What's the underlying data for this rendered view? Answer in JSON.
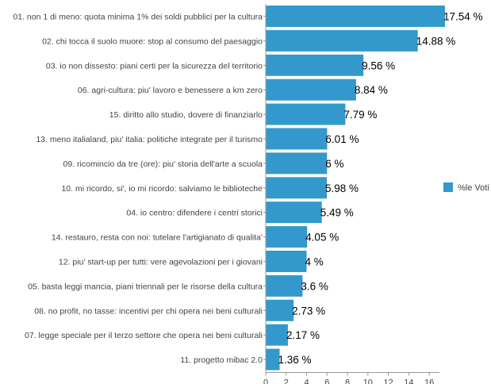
{
  "chart_data": {
    "type": "bar",
    "orientation": "horizontal",
    "categories": [
      "01. non 1 di meno: quota minima 1% dei soldi pubblici per la cultura",
      "02. chi tocca il suolo muore: stop al consumo del paesaggio",
      "03. io non dissesto: piani certi per la sicurezza del territorio",
      "06. agri-cultura: piu' lavoro e benessere a km zero",
      "15. diritto allo studio, dovere di finanziarlo",
      "13. meno italialand, piu' italia: politiche integrate per il turismo",
      "09. ricomincio da tre (ore): piu' storia dell'arte a scuola",
      "10. mi ricordo, si', io mi ricordo: salviamo le biblioteche",
      "04. io centro: difendere i centri storici",
      "14. restauro, resta con noi: tutelare l'artigianato di qualita'",
      "12. piu' start-up per tutti: vere agevolazioni per i giovani",
      "05. basta leggi mancia, piani triennali per le risorse della cultura",
      "08. no profit, no tasse: incentivi per chi opera nei beni culturali",
      "07. legge speciale per il terzo settore che opera nei beni culturali",
      "11. progetto mibac 2.0"
    ],
    "series": [
      {
        "name": "%le Voti",
        "values": [
          17.54,
          14.88,
          9.56,
          8.84,
          7.79,
          6.01,
          6,
          5.98,
          5.49,
          4.05,
          4,
          3.6,
          2.73,
          2.17,
          1.36
        ],
        "data_labels": [
          "17.54 %",
          "14.88 %",
          "9.56 %",
          "8.84 %",
          "7.79 %",
          "6.01 %",
          "6 %",
          "5.98 %",
          "5.49 %",
          "4.05 %",
          "4 %",
          "3.6 %",
          "2.73 %",
          "2.17 %",
          "1.36 %"
        ]
      }
    ],
    "xticks": [
      0,
      2,
      4,
      6,
      8,
      10,
      12,
      14,
      16
    ],
    "xlim": [
      0,
      17
    ],
    "grid": false,
    "legend": "right",
    "bar_color": "#3399cc"
  }
}
